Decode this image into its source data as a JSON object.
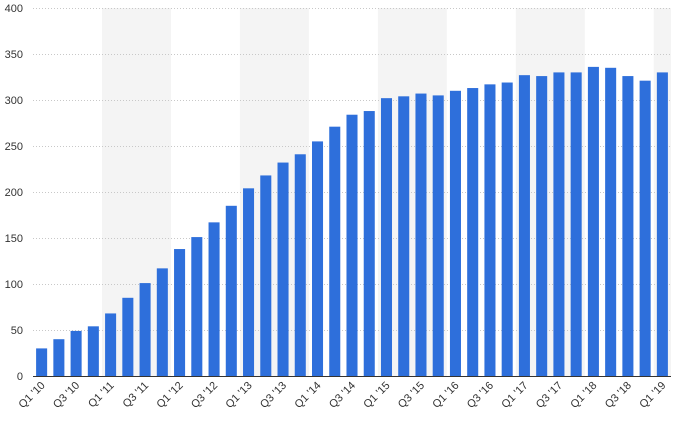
{
  "colors": {
    "bar": "#2e6fdb",
    "grid": "#c8c8c8",
    "band": "#f4f4f4",
    "text": "#333333",
    "axis": "#333333"
  },
  "chart_data": {
    "type": "bar",
    "title": "",
    "xlabel": "",
    "ylabel": "",
    "ylim": [
      0,
      400
    ],
    "yticks": [
      0,
      50,
      100,
      150,
      200,
      250,
      300,
      350,
      400
    ],
    "grid": true,
    "categories": [
      "Q1 '10",
      "Q2 '10",
      "Q3 '10",
      "Q4 '10",
      "Q1 '11",
      "Q2 '11",
      "Q3 '11",
      "Q4 '11",
      "Q1 '12",
      "Q2 '12",
      "Q3 '12",
      "Q4 '12",
      "Q1 '13",
      "Q2 '13",
      "Q3 '13",
      "Q4 '13",
      "Q1 '14",
      "Q2 '14",
      "Q3 '14",
      "Q4 '14",
      "Q1 '15",
      "Q2 '15",
      "Q3 '15",
      "Q4 '15",
      "Q1 '16",
      "Q2 '16",
      "Q3 '16",
      "Q4 '16",
      "Q1 '17",
      "Q2 '17",
      "Q3 '17",
      "Q4 '17",
      "Q1 '18",
      "Q2 '18",
      "Q3 '18",
      "Q4 '18",
      "Q1 '19"
    ],
    "shown_x_labels": [
      "Q1 '10",
      "Q3 '10",
      "Q1 '11",
      "Q3 '11",
      "Q1 '12",
      "Q3 '12",
      "Q1 '13",
      "Q3 '13",
      "Q1 '14",
      "Q3 '14",
      "Q1 '15",
      "Q3 '15",
      "Q1 '16",
      "Q3 '16",
      "Q1 '17",
      "Q3 '17",
      "Q1 '18",
      "Q3 '18",
      "Q1 '19"
    ],
    "values": [
      30,
      40,
      49,
      54,
      68,
      85,
      101,
      117,
      138,
      151,
      167,
      185,
      204,
      218,
      232,
      241,
      255,
      271,
      284,
      288,
      302,
      304,
      307,
      305,
      310,
      313,
      317,
      319,
      327,
      326,
      330,
      330,
      336,
      335,
      326,
      321,
      330
    ]
  }
}
